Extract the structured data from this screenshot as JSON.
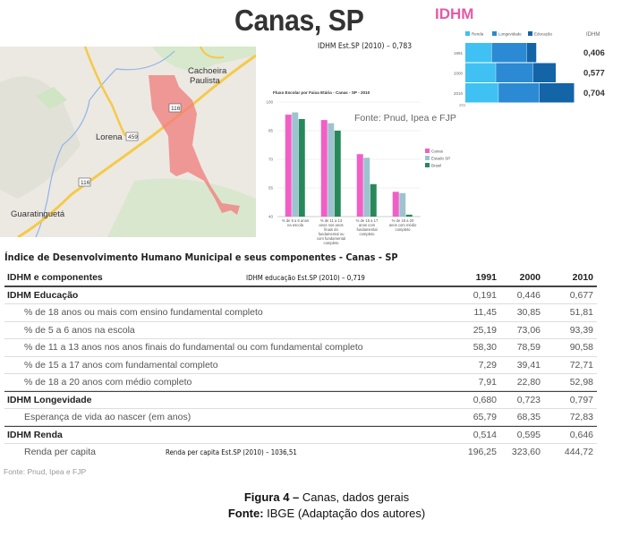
{
  "title": "Canas, SP",
  "map": {
    "labels": [
      "Cachoeira",
      "Paulista",
      "Lorena",
      "Guaratinguetá"
    ],
    "road_shields": [
      "116",
      "459",
      "116"
    ]
  },
  "idhm_sp_note": "IDHM Est.SP (2010) – 0,783",
  "idhm_panel": {
    "title": "IDHM",
    "header": "IDHM",
    "legend": [
      "Renda",
      "Longevidade",
      "Educação"
    ],
    "colors": [
      "#3fc1f3",
      "#2b8ad3",
      "#1464a8"
    ],
    "rows": [
      {
        "year": "1991",
        "renda": 0.514,
        "longevidade": 0.68,
        "educacao": 0.191,
        "value": "0,406"
      },
      {
        "year": "2000",
        "renda": 0.595,
        "longevidade": 0.723,
        "educacao": 0.446,
        "value": "0,577"
      },
      {
        "year": "2010",
        "renda": 0.646,
        "longevidade": 0.797,
        "educacao": 0.677,
        "value": "0,704"
      }
    ]
  },
  "chart_data": {
    "type": "bar",
    "title": "Fluxo Escolar por Faixa Etária - Canas - SP - 2010",
    "categories": [
      "% de 5 a 6 anos na escola",
      "% de 11 a 13 anos nos anos finais do fundamental ou com fundamental completo",
      "% de 15 a 17 anos com fundamental completo",
      "% de 18 a 20 anos com médio completo"
    ],
    "category_lines": [
      [
        "% de 5 a 6 anos",
        "na escola"
      ],
      [
        "% de 11 a 13",
        "anos nos anos",
        "finais do",
        "fundamental ou",
        "com fundamental",
        "completo"
      ],
      [
        "% de 15 a 17",
        "anos com",
        "fundamental",
        "completo"
      ],
      [
        "% de 18 a 20",
        "anos com médio",
        "completo"
      ]
    ],
    "series": [
      {
        "name": "Canas",
        "color": "#f25fc4",
        "values": [
          93.39,
          90.58,
          72.71,
          52.98
        ]
      },
      {
        "name": "Estado SP",
        "color": "#9dc3d0",
        "values": [
          94.6,
          88.9,
          70.8,
          52.3
        ]
      },
      {
        "name": "Brasil",
        "color": "#27895a",
        "values": [
          91.1,
          85.0,
          57.0,
          41.0
        ]
      }
    ],
    "yticks": [
      "100",
      "85",
      "70",
      "55",
      "40"
    ],
    "ylim": [
      40,
      100
    ],
    "legend_position": "right",
    "source_note": "Fonte: Pnud, Ipea e FJP",
    "year_note": "2010"
  },
  "table": {
    "title": "Índice de Desenvolvimento Humano Municipal e seus componentes - Canas - SP",
    "header": {
      "label": "IDHM e componentes",
      "years": [
        "1991",
        "2000",
        "2010"
      ]
    },
    "rows": [
      {
        "label": "IDHM Educação",
        "type": "group",
        "values": [
          "0,191",
          "0,446",
          "0,677"
        ]
      },
      {
        "label": "% de 18 anos ou mais com ensino fundamental completo",
        "type": "sub",
        "values": [
          "11,45",
          "30,85",
          "51,81"
        ]
      },
      {
        "label": "% de 5 a 6 anos na escola",
        "type": "sub",
        "values": [
          "25,19",
          "73,06",
          "93,39"
        ]
      },
      {
        "label": "% de 11 a 13 anos nos anos finais do fundamental ou com fundamental completo",
        "type": "sub",
        "values": [
          "58,30",
          "78,59",
          "90,58"
        ]
      },
      {
        "label": "% de 15 a 17 anos com fundamental completo",
        "type": "sub",
        "values": [
          "7,29",
          "39,41",
          "72,71"
        ]
      },
      {
        "label": "% de 18 a 20 anos com médio completo",
        "type": "sub",
        "values": [
          "7,91",
          "22,80",
          "52,98"
        ]
      },
      {
        "label": "IDHM Longevidade",
        "type": "group",
        "values": [
          "0,680",
          "0,723",
          "0,797"
        ]
      },
      {
        "label": "Esperança de vida ao nascer (em anos)",
        "type": "sub",
        "values": [
          "65,79",
          "68,35",
          "72,83"
        ]
      },
      {
        "label": "IDHM Renda",
        "type": "group",
        "values": [
          "0,514",
          "0,595",
          "0,646"
        ]
      },
      {
        "label": "Renda per capita",
        "type": "sub",
        "values": [
          "196,25",
          "323,60",
          "444,72"
        ]
      }
    ],
    "note_educacao": "IDHM educação Est.SP (2010) – 0,719",
    "note_renda": "Renda per capita Est.SP (2010) – 1036,51",
    "source": "Fonte: Pnud, Ipea e FJP"
  },
  "caption": {
    "figure_bold": "Figura 4 –",
    "figure_text": " Canas, dados gerais",
    "source_bold": "Fonte:",
    "source_text": " IBGE (Adaptação dos autores)"
  }
}
